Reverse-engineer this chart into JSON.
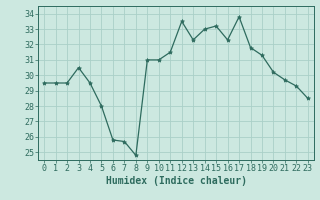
{
  "x": [
    0,
    1,
    2,
    3,
    4,
    5,
    6,
    7,
    8,
    9,
    10,
    11,
    12,
    13,
    14,
    15,
    16,
    17,
    18,
    19,
    20,
    21,
    22,
    23
  ],
  "y": [
    29.5,
    29.5,
    29.5,
    30.5,
    29.5,
    28.0,
    25.8,
    25.7,
    24.8,
    31.0,
    31.0,
    31.5,
    33.5,
    32.3,
    33.0,
    33.2,
    32.3,
    33.8,
    31.8,
    31.3,
    30.2,
    29.7,
    29.3,
    28.5
  ],
  "line_color": "#2e6b5e",
  "marker": "*",
  "marker_size": 3,
  "bg_color": "#cce8e0",
  "grid_color": "#aad0c8",
  "xlabel": "Humidex (Indice chaleur)",
  "ylim": [
    24.5,
    34.5
  ],
  "yticks": [
    25,
    26,
    27,
    28,
    29,
    30,
    31,
    32,
    33,
    34
  ],
  "xticks": [
    0,
    1,
    2,
    3,
    4,
    5,
    6,
    7,
    8,
    9,
    10,
    11,
    12,
    13,
    14,
    15,
    16,
    17,
    18,
    19,
    20,
    21,
    22,
    23
  ],
  "xlim": [
    -0.5,
    23.5
  ],
  "text_color": "#2e6b5e",
  "xlabel_fontsize": 7,
  "tick_fontsize": 6,
  "spine_color": "#2e6b5e"
}
